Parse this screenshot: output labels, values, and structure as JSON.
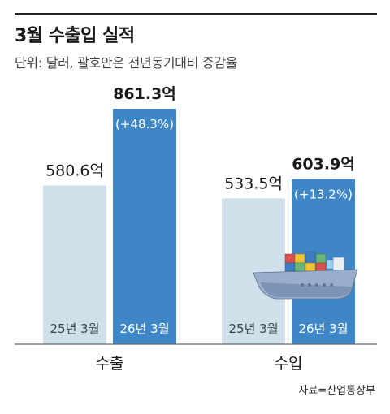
{
  "header": {
    "title": "3월 수출입 실적",
    "subtitle": "단위: 달러, 괄호안은 전년동기대비 증감율"
  },
  "colors": {
    "prev_year": "#cfe0ea",
    "curr_year": "#3f86c6",
    "axis": "#666666",
    "text": "#1a1a1a"
  },
  "chart_data": {
    "type": "bar",
    "categories": [
      "수출",
      "수입"
    ],
    "series": [
      {
        "name": "25년 3월",
        "values": [
          580.6,
          533.5
        ],
        "labels": [
          "580.6억",
          "533.5억"
        ]
      },
      {
        "name": "26년 3월",
        "values": [
          861.3,
          603.9
        ],
        "labels": [
          "861.3억",
          "603.9억"
        ],
        "change": [
          "(+48.3%)",
          "(+13.2%)"
        ]
      }
    ],
    "ylabel": "",
    "ylim": [
      0,
      900
    ],
    "grid": false,
    "legend": "none"
  },
  "footer": {
    "source": "자료=산업통상부"
  },
  "decoration": {
    "icon": "cargo-ship-icon"
  }
}
